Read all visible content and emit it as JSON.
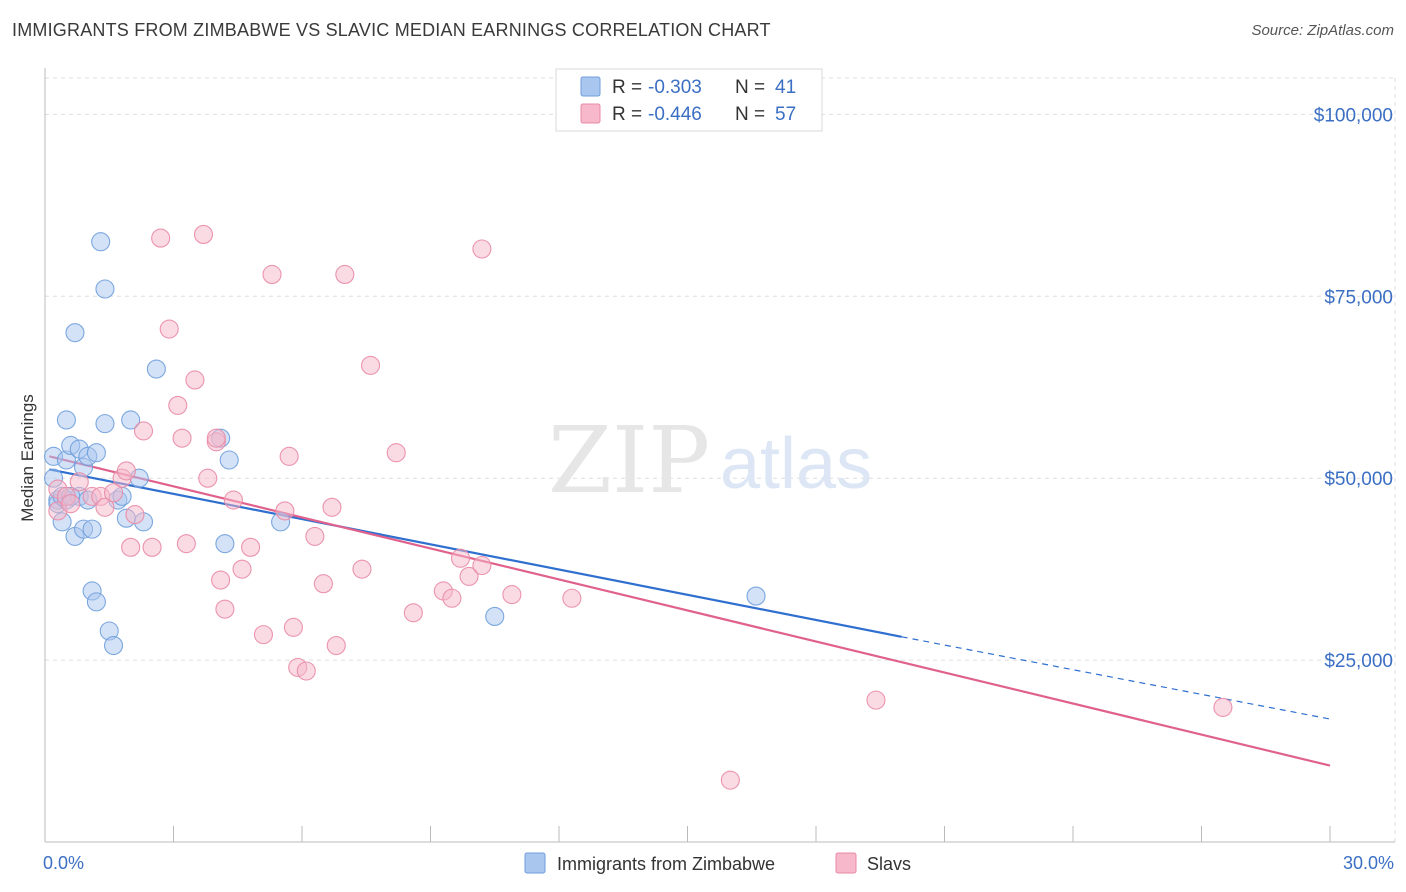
{
  "title": "IMMIGRANTS FROM ZIMBABWE VS SLAVIC MEDIAN EARNINGS CORRELATION CHART",
  "source": "Source: ZipAtlas.com",
  "watermark": {
    "zip": "ZIP",
    "atlas": "atlas"
  },
  "legend_top": [
    {
      "r_label": "R = ",
      "r_value": "-0.303",
      "n_label": "N = ",
      "n_value": "41",
      "color": "#a9c6ef",
      "stroke": "#6f9edc"
    },
    {
      "r_label": "R = ",
      "r_value": "-0.446",
      "n_label": "N = ",
      "n_value": "57",
      "color": "#f6b8ca",
      "stroke": "#e98aa6"
    }
  ],
  "legend_bottom": [
    {
      "label": "Immigrants from Zimbabwe",
      "color": "#a9c6ef",
      "stroke": "#6f9edc"
    },
    {
      "label": "Slavs",
      "color": "#f6b8ca",
      "stroke": "#e98aa6"
    }
  ],
  "chart_data": {
    "type": "scatter",
    "xlabel": "",
    "ylabel": "Median Earnings",
    "xlim": [
      0,
      30
    ],
    "ylim": [
      0,
      105000
    ],
    "x_tick_labels": [
      {
        "value": 0,
        "label": "0.0%"
      },
      {
        "value": 30,
        "label": "30.0%"
      }
    ],
    "y_tick_labels": [
      {
        "value": 25000,
        "label": "$25,000"
      },
      {
        "value": 50000,
        "label": "$50,000"
      },
      {
        "value": 75000,
        "label": "$75,000"
      },
      {
        "value": 100000,
        "label": "$100,000"
      }
    ],
    "grid": true,
    "series": [
      {
        "name": "Immigrants from Zimbabwe",
        "color": "#6f9edc",
        "fill": "#a9c6ef",
        "points": [
          [
            0.2,
            53000
          ],
          [
            0.2,
            50000
          ],
          [
            0.3,
            47000
          ],
          [
            0.3,
            46500
          ],
          [
            0.4,
            44000
          ],
          [
            0.5,
            47000
          ],
          [
            0.5,
            52500
          ],
          [
            0.5,
            58000
          ],
          [
            0.6,
            54500
          ],
          [
            0.7,
            70000
          ],
          [
            0.7,
            42000
          ],
          [
            0.8,
            54000
          ],
          [
            0.8,
            47500
          ],
          [
            0.9,
            43000
          ],
          [
            0.9,
            51500
          ],
          [
            1.0,
            53000
          ],
          [
            1.0,
            47000
          ],
          [
            1.1,
            43000
          ],
          [
            1.1,
            34500
          ],
          [
            1.2,
            53500
          ],
          [
            1.2,
            33000
          ],
          [
            1.3,
            82500
          ],
          [
            1.4,
            76000
          ],
          [
            1.4,
            57500
          ],
          [
            1.5,
            29000
          ],
          [
            1.6,
            27000
          ],
          [
            1.7,
            47000
          ],
          [
            1.8,
            47500
          ],
          [
            1.9,
            44500
          ],
          [
            2.0,
            58000
          ],
          [
            2.2,
            50000
          ],
          [
            2.3,
            44000
          ],
          [
            2.6,
            65000
          ],
          [
            4.2,
            41000
          ],
          [
            4.1,
            55500
          ],
          [
            4.3,
            52500
          ],
          [
            5.5,
            44000
          ],
          [
            10.5,
            31000
          ],
          [
            16.6,
            33800
          ],
          [
            0.4,
            47500
          ],
          [
            0.6,
            47500
          ]
        ],
        "trend": {
          "x_start": 0.1,
          "y_start": 51200,
          "x_solid_end": 20.0,
          "y_solid_end": 28200,
          "x_end": 30.0,
          "y_end": 16900
        }
      },
      {
        "name": "Slavs",
        "color": "#e98aa6",
        "fill": "#f6b8ca",
        "points": [
          [
            0.3,
            45500
          ],
          [
            0.3,
            48500
          ],
          [
            0.5,
            47500
          ],
          [
            0.6,
            46500
          ],
          [
            0.8,
            49500
          ],
          [
            1.1,
            47500
          ],
          [
            1.3,
            47500
          ],
          [
            1.4,
            46000
          ],
          [
            1.8,
            50000
          ],
          [
            1.9,
            51000
          ],
          [
            2.0,
            40500
          ],
          [
            2.1,
            45000
          ],
          [
            2.3,
            56500
          ],
          [
            2.5,
            40500
          ],
          [
            2.7,
            83000
          ],
          [
            2.9,
            70500
          ],
          [
            3.1,
            60000
          ],
          [
            3.2,
            55500
          ],
          [
            3.3,
            41000
          ],
          [
            3.5,
            63500
          ],
          [
            3.7,
            83500
          ],
          [
            3.8,
            50000
          ],
          [
            4.0,
            55000
          ],
          [
            4.1,
            36000
          ],
          [
            4.2,
            32000
          ],
          [
            4.4,
            47000
          ],
          [
            4.6,
            37500
          ],
          [
            4.8,
            40500
          ],
          [
            5.1,
            28500
          ],
          [
            5.3,
            78000
          ],
          [
            5.6,
            45500
          ],
          [
            5.7,
            53000
          ],
          [
            5.8,
            29500
          ],
          [
            5.9,
            24000
          ],
          [
            6.1,
            23500
          ],
          [
            6.3,
            42000
          ],
          [
            6.5,
            35500
          ],
          [
            6.7,
            46000
          ],
          [
            6.8,
            27000
          ],
          [
            7.0,
            78000
          ],
          [
            7.4,
            37500
          ],
          [
            7.6,
            65500
          ],
          [
            8.2,
            53500
          ],
          [
            8.6,
            31500
          ],
          [
            9.3,
            34500
          ],
          [
            9.5,
            33500
          ],
          [
            9.7,
            39000
          ],
          [
            9.9,
            36500
          ],
          [
            10.2,
            38000
          ],
          [
            10.2,
            81500
          ],
          [
            10.9,
            34000
          ],
          [
            12.3,
            33500
          ],
          [
            16.0,
            8500
          ],
          [
            19.4,
            19500
          ],
          [
            27.5,
            18500
          ],
          [
            1.6,
            48000
          ],
          [
            4.0,
            55500
          ]
        ],
        "trend": {
          "x_start": 0.1,
          "y_start": 53000,
          "x_end": 30.0,
          "y_end": 10500
        }
      }
    ]
  }
}
